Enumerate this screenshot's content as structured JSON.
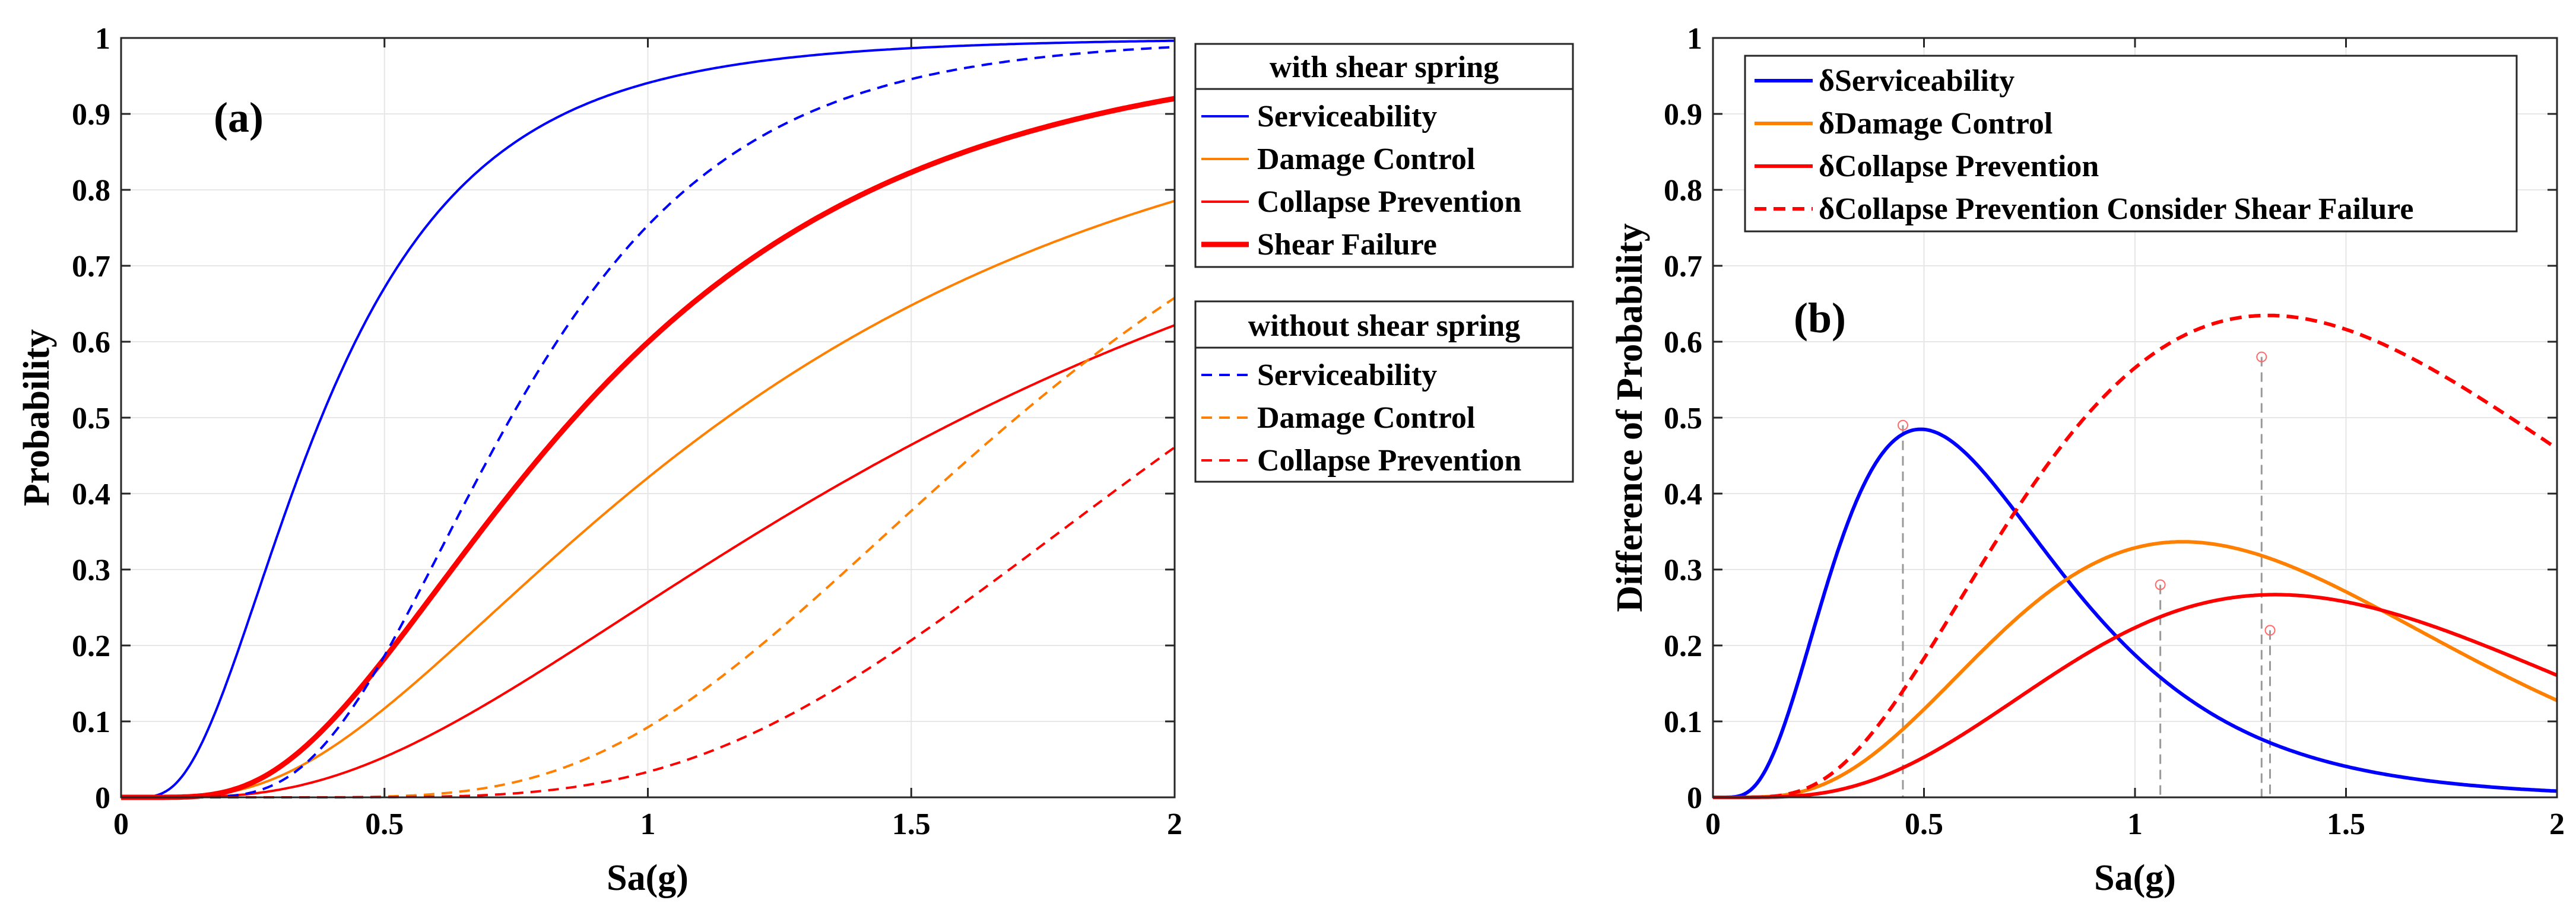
{
  "chart_data": [
    {
      "panel": "(a)",
      "type": "line",
      "xlabel": "Sa(g)",
      "ylabel": "Probability",
      "xlim": [
        0,
        2
      ],
      "ylim": [
        0,
        1
      ],
      "xticks": [
        "0",
        "0.5",
        "1",
        "1.5",
        "2"
      ],
      "yticks": [
        "0",
        "0.1",
        "0.2",
        "0.3",
        "0.4",
        "0.5",
        "0.6",
        "0.7",
        "0.8",
        "0.9",
        "1"
      ],
      "grid": true,
      "legends": [
        {
          "title": "with shear spring",
          "entries": [
            "Serviceability",
            "Damage Control",
            "Collapse Prevention",
            "Shear Failure"
          ]
        },
        {
          "title": "without shear spring",
          "entries": [
            "Serviceability",
            "Damage Control",
            "Collapse Prevention"
          ]
        }
      ],
      "series": [
        {
          "name": "Serviceability",
          "group": "with shear spring",
          "color": "#0000ff",
          "dash": "solid",
          "bold": false,
          "curve": {
            "kind": "lognormal_cdf",
            "median": 0.38,
            "beta": 0.62
          }
        },
        {
          "name": "Damage Control",
          "group": "with shear spring",
          "color": "#ff8000",
          "dash": "solid",
          "bold": false,
          "curve": {
            "kind": "lognormal_cdf",
            "median": 1.15,
            "beta": 0.7
          }
        },
        {
          "name": "Collapse Prevention",
          "group": "with shear spring",
          "color": "#ff0000",
          "dash": "solid",
          "bold": false,
          "curve": {
            "kind": "lognormal_cdf",
            "median": 1.6,
            "beta": 0.72
          }
        },
        {
          "name": "Shear Failure",
          "group": "with shear spring",
          "color": "#ff0000",
          "dash": "solid",
          "bold": true,
          "curve": {
            "kind": "lognormal_cdf",
            "median": 0.86,
            "beta": 0.6
          }
        },
        {
          "name": "Serviceability",
          "group": "without shear spring",
          "color": "#0000ff",
          "dash": "dashed",
          "bold": false,
          "curve": {
            "kind": "lognormal_cdf",
            "median": 0.74,
            "beta": 0.44
          }
        },
        {
          "name": "Damage Control",
          "group": "without shear spring",
          "color": "#ff8000",
          "dash": "dashed",
          "bold": false,
          "curve": {
            "kind": "lognormal_cdf",
            "median": 1.7,
            "beta": 0.4
          }
        },
        {
          "name": "Collapse Prevention",
          "group": "without shear spring",
          "color": "#ff0000",
          "dash": "dashed",
          "bold": false,
          "curve": {
            "kind": "lognormal_cdf",
            "median": 2.08,
            "beta": 0.4
          }
        }
      ]
    },
    {
      "panel": "(b)",
      "type": "line",
      "xlabel": "Sa(g)",
      "ylabel": "Difference of Probability",
      "xlim": [
        0,
        2
      ],
      "ylim": [
        0,
        1
      ],
      "xticks": [
        "0",
        "0.5",
        "1",
        "1.5",
        "2"
      ],
      "yticks": [
        "0",
        "0.1",
        "0.2",
        "0.3",
        "0.4",
        "0.5",
        "0.6",
        "0.7",
        "0.8",
        "0.9",
        "1"
      ],
      "grid": true,
      "legend": [
        "δServiceability",
        "δDamage Control",
        "δCollapse Prevention",
        "δCollapse Prevention Consider Shear Failure"
      ],
      "series": [
        {
          "name": "δServiceability",
          "color": "#0000ff",
          "dash": "solid",
          "curve": {
            "kind": "difference",
            "minuend": [
              0.38,
              0.62
            ],
            "subtrahend": [
              0.74,
              0.44
            ]
          },
          "peak": {
            "x": 0.45,
            "y": 0.49
          }
        },
        {
          "name": "δDamage Control",
          "color": "#ff8000",
          "dash": "solid",
          "curve": {
            "kind": "difference",
            "minuend": [
              1.15,
              0.7
            ],
            "subtrahend": [
              1.7,
              0.4
            ]
          },
          "peak": {
            "x": 1.06,
            "y": 0.28
          }
        },
        {
          "name": "δCollapse Prevention",
          "color": "#ff0000",
          "dash": "solid",
          "curve": {
            "kind": "difference",
            "minuend": [
              1.6,
              0.72
            ],
            "subtrahend": [
              2.08,
              0.4
            ]
          },
          "peak": {
            "x": 1.32,
            "y": 0.22
          }
        },
        {
          "name": "δCollapse Prevention Consider Shear Failure",
          "color": "#ff0000",
          "dash": "dashed",
          "curve": {
            "kind": "difference",
            "minuend": [
              0.86,
              0.6
            ],
            "subtrahend": [
              2.08,
              0.4
            ]
          },
          "peak": {
            "x": 1.3,
            "y": 0.58
          }
        }
      ]
    }
  ]
}
